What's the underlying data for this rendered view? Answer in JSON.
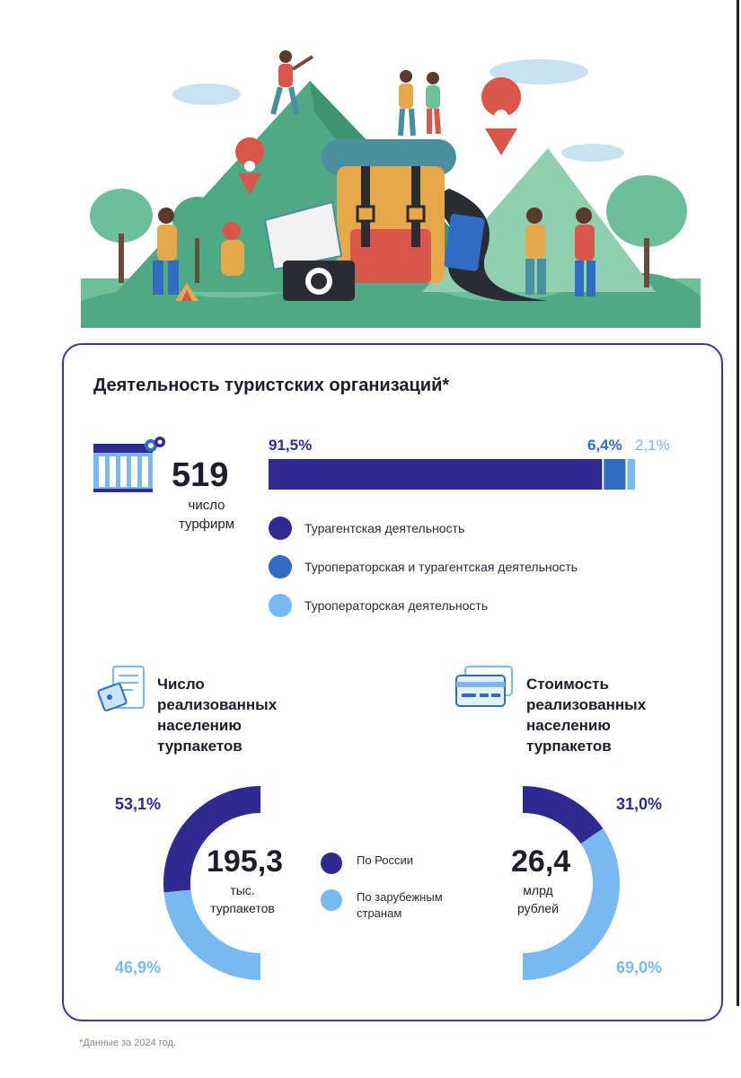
{
  "title": "Деятельность туристских организаций*",
  "firms": {
    "value": "519",
    "label_line1": "число",
    "label_line2": "турфирм"
  },
  "colors": {
    "dark": "#2e2a8f",
    "mid": "#2f6cc2",
    "light": "#7ab8f0",
    "border": "#3a35a8"
  },
  "chart_data": [
    {
      "type": "bar",
      "orientation": "horizontal-stacked",
      "title": "Деятельность туристских организаций*",
      "series": [
        {
          "name": "Турагентская деятельность",
          "value": 91.5,
          "label": "91,5%"
        },
        {
          "name": "Туроператорская и турагентская деятельность",
          "value": 6.4,
          "label": "6,4%"
        },
        {
          "name": "Туроператорская деятельность",
          "value": 2.1,
          "label": "2,1%"
        }
      ],
      "total": {
        "value": "519",
        "label": "число турфирм"
      }
    },
    {
      "type": "pie",
      "subtype": "half-donut",
      "title": "Число реализованных населению турпакетов",
      "center_value": "195,3",
      "center_unit_line1": "тыс.",
      "center_unit_line2": "турпакетов",
      "series": [
        {
          "name": "По России",
          "value": 53.1,
          "label": "53,1%"
        },
        {
          "name": "По зарубежным странам",
          "value": 46.9,
          "label": "46,9%"
        }
      ]
    },
    {
      "type": "pie",
      "subtype": "half-donut",
      "title": "Стоимость реализованных населению турпакетов",
      "center_value": "26,4",
      "center_unit_line1": "млрд",
      "center_unit_line2": "рублей",
      "series": [
        {
          "name": "По России",
          "value": 31.0,
          "label": "31,0%"
        },
        {
          "name": "По зарубежным странам",
          "value": 69.0,
          "label": "69,0%"
        }
      ]
    }
  ],
  "sections": {
    "count_title_lines": [
      "Число",
      "реализованных",
      "населению",
      "турпакетов"
    ],
    "cost_title_lines": [
      "Стоимость",
      "реализованных",
      "населению",
      "турпакетов"
    ]
  },
  "donut_legend": {
    "russia": "По России",
    "foreign_line1": "По зарубежным",
    "foreign_line2": "странам"
  },
  "footnote": "*Данные за 2024 год."
}
